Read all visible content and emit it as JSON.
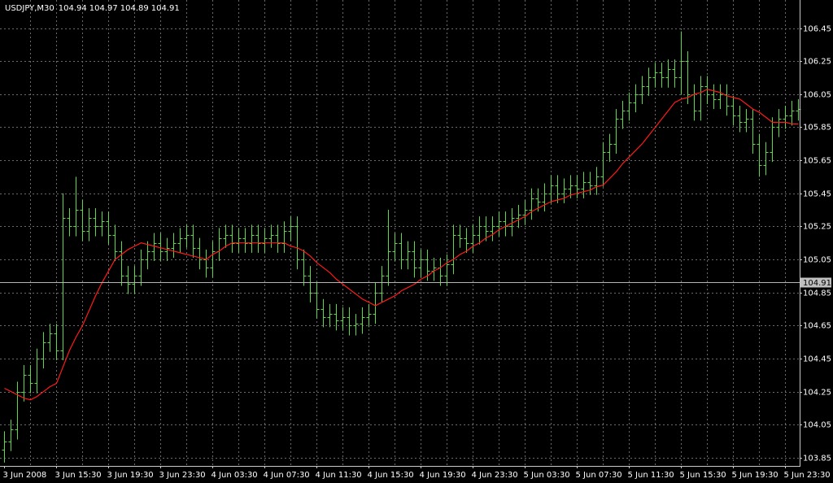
{
  "chart_data": {
    "type": "ohlc",
    "header": {
      "symbol": "USDJPY,M30",
      "open": 104.94,
      "high": 104.97,
      "low": 104.89,
      "close": 104.91
    },
    "categories": [
      "3 Jun 2008",
      null,
      null,
      null,
      null,
      null,
      null,
      null,
      "3 Jun 15:30",
      null,
      null,
      null,
      null,
      null,
      null,
      null,
      "3 Jun 19:30",
      null,
      null,
      null,
      null,
      null,
      null,
      null,
      "3 Jun 23:30",
      null,
      null,
      null,
      null,
      null,
      null,
      null,
      "4 Jun 03:30",
      null,
      null,
      null,
      null,
      null,
      null,
      null,
      "4 Jun 07:30",
      null,
      null,
      null,
      null,
      null,
      null,
      null,
      "4 Jun 11:30",
      null,
      null,
      null,
      null,
      null,
      null,
      null,
      "4 Jun 15:30",
      null,
      null,
      null,
      null,
      null,
      null,
      null,
      "4 Jun 19:30",
      null,
      null,
      null,
      null,
      null,
      null,
      null,
      "4 Jun 23:30",
      null,
      null,
      null,
      null,
      null,
      null,
      null,
      "5 Jun 03:30",
      null,
      null,
      null,
      null,
      null,
      null,
      null,
      "5 Jun 07:30",
      null,
      null,
      null,
      null,
      null,
      null,
      null,
      "5 Jun 11:30",
      null,
      null,
      null,
      null,
      null,
      null,
      null,
      "5 Jun 15:30",
      null,
      null,
      null,
      null,
      null,
      null,
      null,
      "5 Jun 19:30",
      null,
      null,
      null,
      null,
      null,
      null,
      null,
      "5 Jun 23:30",
      null,
      null
    ],
    "open": [
      103.9,
      103.95,
      104.02,
      104.25,
      104.35,
      104.3,
      104.45,
      104.55,
      104.6,
      104.5,
      105.3,
      105.25,
      105.35,
      105.22,
      105.3,
      105.25,
      105.28,
      105.2,
      105.1,
      104.95,
      104.9,
      104.95,
      105.05,
      105.1,
      105.15,
      105.1,
      105.12,
      105.15,
      105.18,
      105.2,
      105.12,
      105.05,
      105.0,
      105.1,
      105.18,
      105.2,
      105.15,
      105.18,
      105.15,
      105.2,
      105.15,
      105.18,
      105.2,
      105.15,
      105.22,
      105.25,
      105.05,
      104.95,
      104.85,
      104.75,
      104.7,
      104.72,
      104.68,
      104.7,
      104.65,
      104.66,
      104.7,
      104.72,
      104.85,
      104.95,
      105.1,
      105.15,
      105.05,
      105.1,
      105.0,
      105.05,
      104.98,
      105.0,
      104.95,
      105.02,
      105.2,
      105.18,
      105.15,
      105.2,
      105.25,
      105.22,
      105.25,
      105.28,
      105.25,
      105.3,
      105.32,
      105.35,
      105.42,
      105.4,
      105.45,
      105.5,
      105.45,
      105.48,
      105.5,
      105.48,
      105.52,
      105.5,
      105.55,
      105.7,
      105.75,
      105.9,
      105.95,
      106.0,
      106.05,
      106.1,
      106.15,
      106.18,
      106.15,
      106.2,
      106.15,
      106.25,
      106.05,
      105.95,
      106.1,
      106.05,
      106.02,
      106.05,
      105.98,
      105.92,
      105.88,
      105.9,
      105.75,
      105.62,
      105.7,
      105.85,
      105.9,
      105.92,
      105.95
    ],
    "high": [
      104.01,
      104.08,
      104.31,
      104.41,
      104.41,
      104.51,
      104.61,
      104.66,
      104.66,
      105.45,
      105.36,
      105.55,
      105.41,
      105.36,
      105.36,
      105.34,
      105.34,
      105.26,
      105.16,
      105.01,
      105.01,
      105.11,
      105.16,
      105.21,
      105.21,
      105.18,
      105.21,
      105.24,
      105.26,
      105.26,
      105.18,
      105.11,
      105.16,
      105.24,
      105.26,
      105.26,
      105.24,
      105.24,
      105.26,
      105.26,
      105.24,
      105.26,
      105.26,
      105.28,
      105.31,
      105.31,
      105.11,
      105.01,
      104.91,
      104.81,
      104.78,
      104.78,
      104.76,
      104.76,
      104.72,
      104.76,
      104.78,
      104.91,
      105.01,
      105.35,
      105.21,
      105.21,
      105.16,
      105.16,
      105.11,
      105.11,
      105.06,
      105.06,
      105.08,
      105.26,
      105.26,
      105.24,
      105.26,
      105.31,
      105.31,
      105.31,
      105.34,
      105.34,
      105.36,
      105.38,
      105.41,
      105.48,
      105.48,
      105.51,
      105.56,
      105.56,
      105.54,
      105.56,
      105.56,
      105.58,
      105.58,
      105.61,
      105.76,
      105.81,
      105.96,
      106.01,
      106.06,
      106.11,
      106.16,
      106.21,
      106.24,
      106.24,
      106.26,
      106.26,
      106.43,
      106.31,
      106.11,
      106.16,
      106.16,
      106.11,
      106.11,
      106.11,
      106.04,
      105.98,
      105.96,
      105.96,
      105.81,
      105.76,
      105.91,
      105.96,
      105.98,
      106.01,
      106.02
    ],
    "low": [
      103.82,
      103.89,
      103.96,
      104.19,
      104.24,
      104.24,
      104.39,
      104.49,
      104.44,
      104.44,
      105.19,
      105.19,
      105.16,
      105.16,
      105.19,
      105.19,
      105.14,
      105.04,
      104.89,
      104.84,
      104.84,
      104.89,
      104.99,
      105.04,
      105.04,
      105.04,
      105.06,
      105.09,
      105.12,
      105.06,
      104.99,
      104.94,
      104.94,
      105.04,
      105.12,
      105.09,
      105.09,
      105.09,
      105.09,
      105.09,
      105.09,
      105.12,
      105.09,
      105.09,
      105.16,
      104.99,
      104.89,
      104.79,
      104.69,
      104.64,
      104.64,
      104.62,
      104.62,
      104.59,
      104.59,
      104.6,
      104.64,
      104.66,
      104.79,
      104.89,
      105.04,
      104.99,
      104.99,
      104.94,
      104.94,
      104.92,
      104.92,
      104.89,
      104.89,
      104.96,
      105.12,
      105.09,
      105.09,
      105.14,
      105.16,
      105.16,
      105.19,
      105.19,
      105.19,
      105.24,
      105.26,
      105.29,
      105.34,
      105.34,
      105.39,
      105.39,
      105.39,
      105.42,
      105.42,
      105.42,
      105.44,
      105.44,
      105.49,
      105.64,
      105.69,
      105.84,
      105.89,
      105.94,
      105.99,
      106.04,
      106.09,
      106.09,
      106.09,
      106.09,
      106.05,
      105.99,
      105.89,
      105.89,
      105.99,
      105.96,
      105.96,
      105.92,
      105.86,
      105.82,
      105.82,
      105.69,
      105.55,
      105.56,
      105.64,
      105.79,
      105.84,
      105.86,
      105.89
    ],
    "close": [
      103.95,
      104.02,
      104.25,
      104.35,
      104.3,
      104.45,
      104.55,
      104.6,
      104.5,
      105.3,
      105.25,
      105.35,
      105.22,
      105.3,
      105.25,
      105.28,
      105.2,
      105.1,
      104.95,
      104.9,
      104.95,
      105.05,
      105.1,
      105.15,
      105.1,
      105.12,
      105.15,
      105.18,
      105.2,
      105.12,
      105.05,
      105.0,
      105.1,
      105.18,
      105.2,
      105.15,
      105.18,
      105.15,
      105.2,
      105.15,
      105.18,
      105.2,
      105.15,
      105.22,
      105.25,
      105.05,
      104.95,
      104.85,
      104.75,
      104.7,
      104.72,
      104.68,
      104.7,
      104.65,
      104.66,
      104.7,
      104.72,
      104.85,
      104.95,
      105.1,
      105.15,
      105.05,
      105.1,
      105.0,
      105.05,
      104.98,
      105.0,
      104.95,
      105.02,
      105.2,
      105.18,
      105.15,
      105.2,
      105.25,
      105.22,
      105.25,
      105.28,
      105.25,
      105.3,
      105.32,
      105.35,
      105.42,
      105.4,
      105.45,
      105.5,
      105.45,
      105.48,
      105.5,
      105.48,
      105.52,
      105.5,
      105.55,
      105.7,
      105.75,
      105.9,
      105.95,
      106.0,
      106.05,
      106.1,
      106.15,
      106.18,
      106.15,
      106.2,
      106.15,
      106.25,
      106.05,
      105.95,
      106.1,
      106.05,
      106.02,
      106.05,
      105.98,
      105.92,
      105.88,
      105.9,
      105.75,
      105.62,
      105.7,
      105.85,
      105.9,
      105.92,
      105.95,
      105.96
    ],
    "color": "#5fd848",
    "ma": {
      "color": "#ff1a1a",
      "values": [
        104.27,
        104.25,
        104.23,
        104.21,
        104.2,
        104.22,
        104.25,
        104.28,
        104.3,
        104.4,
        104.5,
        104.58,
        104.65,
        104.74,
        104.83,
        104.91,
        104.98,
        105.05,
        105.08,
        105.11,
        105.13,
        105.15,
        105.14,
        105.13,
        105.12,
        105.11,
        105.1,
        105.09,
        105.08,
        105.07,
        105.06,
        105.05,
        105.08,
        105.1,
        105.13,
        105.15,
        105.15,
        105.15,
        105.15,
        105.15,
        105.15,
        105.15,
        105.15,
        105.15,
        105.13,
        105.12,
        105.1,
        105.07,
        105.03,
        105.0,
        104.97,
        104.93,
        104.9,
        104.87,
        104.84,
        104.81,
        104.79,
        104.77,
        104.79,
        104.81,
        104.83,
        104.86,
        104.88,
        104.9,
        104.93,
        104.95,
        104.98,
        105.0,
        105.03,
        105.05,
        105.08,
        105.1,
        105.13,
        105.15,
        105.18,
        105.2,
        105.23,
        105.25,
        105.27,
        105.29,
        105.31,
        105.34,
        105.36,
        105.38,
        105.4,
        105.41,
        105.42,
        105.44,
        105.45,
        105.46,
        105.47,
        105.49,
        105.5,
        105.54,
        105.58,
        105.63,
        105.67,
        105.71,
        105.75,
        105.8,
        105.85,
        105.9,
        105.95,
        106.0,
        106.02,
        106.03,
        106.05,
        106.06,
        106.08,
        106.07,
        106.06,
        106.04,
        106.03,
        106.02,
        105.99,
        105.96,
        105.94,
        105.91,
        105.88,
        105.88,
        105.88,
        105.87,
        105.87
      ]
    },
    "price_line": 104.91,
    "ylim": [
      103.8,
      106.62
    ],
    "yticks": [
      103.85,
      104.05,
      104.25,
      104.45,
      104.65,
      104.85,
      105.05,
      105.25,
      105.45,
      105.65,
      105.85,
      106.05,
      106.25,
      106.45
    ],
    "grid": true
  }
}
